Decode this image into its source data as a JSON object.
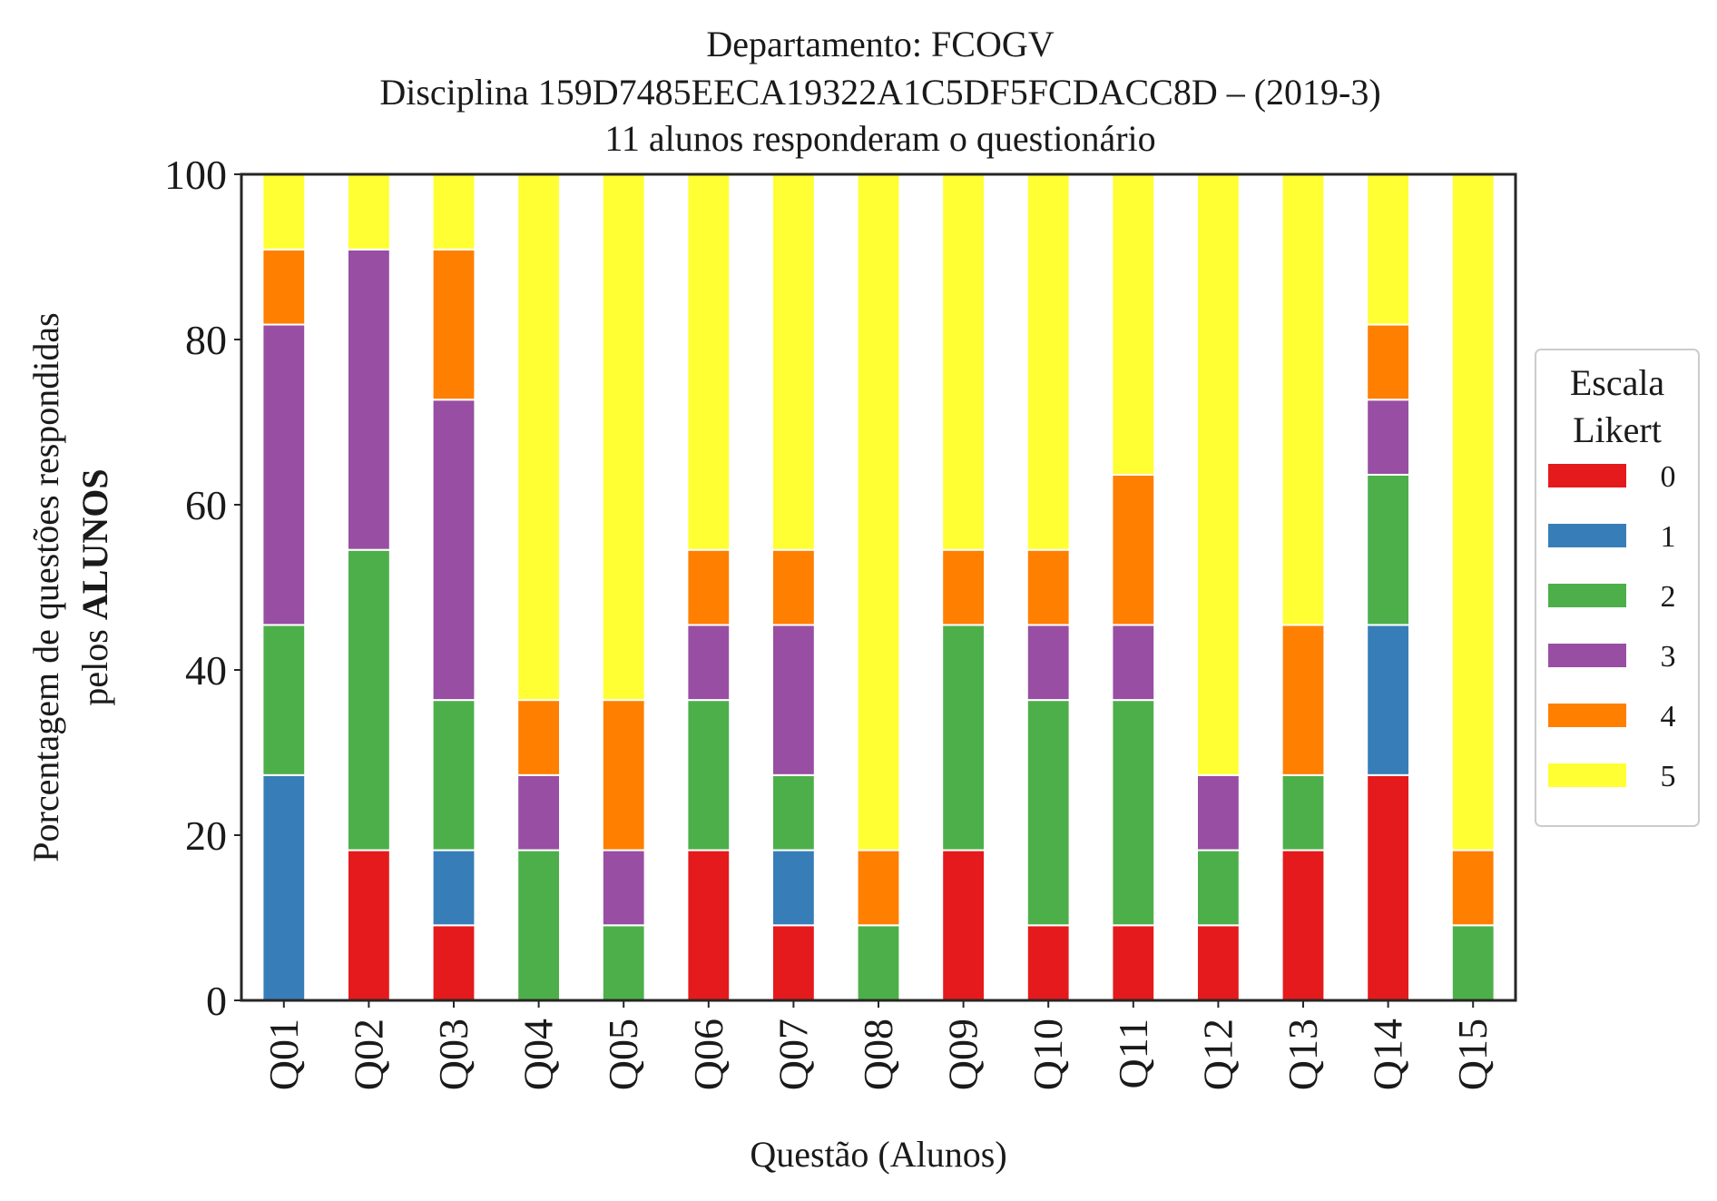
{
  "chart_data": {
    "type": "bar",
    "stacked": true,
    "title": [
      "Departamento: FCOGV",
      "Disciplina 159D7485EECA19322A1C5DF5FCDACC8D – (2019-3)",
      "11 alunos responderam o questionário"
    ],
    "xlabel": "Questão (Alunos)",
    "ylabel_line1": "Porcentagem de questões respondidas",
    "ylabel_line2_prefix": "pelos ",
    "ylabel_line2_bold": "ALUNOS",
    "ylim": [
      0,
      100
    ],
    "yticks": [
      0,
      20,
      40,
      60,
      80,
      100
    ],
    "grid": false,
    "categories": [
      "Q01",
      "Q02",
      "Q03",
      "Q04",
      "Q05",
      "Q06",
      "Q07",
      "Q08",
      "Q09",
      "Q10",
      "Q11",
      "Q12",
      "Q13",
      "Q14",
      "Q15"
    ],
    "legend": {
      "title_lines": [
        "Escala",
        "Likert"
      ],
      "position": "center-right"
    },
    "series": [
      {
        "name": "0",
        "color": "#e41a1c",
        "values": [
          0,
          18.18,
          9.09,
          0,
          0,
          18.18,
          9.09,
          0,
          18.18,
          9.09,
          9.09,
          9.09,
          18.18,
          27.27,
          0
        ]
      },
      {
        "name": "1",
        "color": "#377eb8",
        "values": [
          27.27,
          0,
          9.09,
          0,
          0,
          0,
          9.09,
          0,
          0,
          0,
          0,
          0,
          0,
          18.18,
          0
        ]
      },
      {
        "name": "2",
        "color": "#4daf4a",
        "values": [
          18.18,
          36.36,
          18.18,
          18.18,
          9.09,
          18.18,
          9.09,
          9.09,
          27.27,
          27.27,
          27.27,
          9.09,
          9.09,
          18.18,
          9.09
        ]
      },
      {
        "name": "3",
        "color": "#984ea3",
        "values": [
          36.36,
          36.36,
          36.36,
          9.09,
          9.09,
          9.09,
          18.18,
          0,
          0,
          9.09,
          9.09,
          9.09,
          0,
          9.09,
          0
        ]
      },
      {
        "name": "4",
        "color": "#ff7f00",
        "values": [
          9.09,
          0,
          18.18,
          9.09,
          18.18,
          9.09,
          9.09,
          9.09,
          9.09,
          9.09,
          18.18,
          0,
          18.18,
          9.09,
          9.09
        ]
      },
      {
        "name": "5",
        "color": "#ffff33",
        "values": [
          9.09,
          9.09,
          9.09,
          63.64,
          63.64,
          45.45,
          45.45,
          81.82,
          45.45,
          45.45,
          36.36,
          72.73,
          54.55,
          18.18,
          81.82
        ]
      }
    ]
  }
}
